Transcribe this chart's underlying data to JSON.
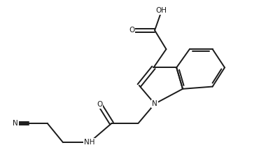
{
  "background_color": "#ffffff",
  "line_color": "#1a1a1a",
  "text_color": "#1a1a1a",
  "figsize": [
    3.7,
    2.34
  ],
  "dpi": 100,
  "bond_lw": 1.4,
  "font_size": 7.5,
  "xlim": [
    -0.5,
    9.5
  ],
  "ylim": [
    -0.3,
    6.8
  ]
}
